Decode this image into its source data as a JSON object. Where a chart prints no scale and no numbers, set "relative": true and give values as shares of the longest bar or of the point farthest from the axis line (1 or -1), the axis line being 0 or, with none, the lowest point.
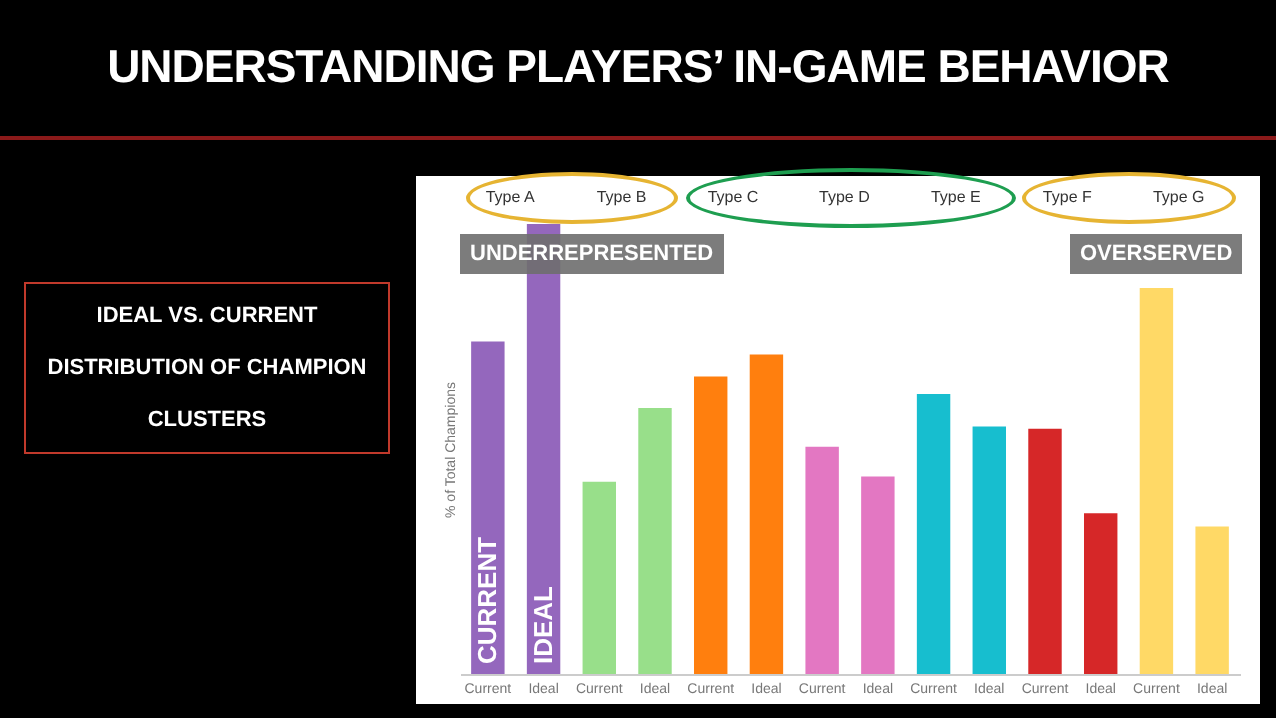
{
  "chart_data": {
    "type": "bar",
    "title": "UNDERSTANDING PLAYERS’ IN-GAME BEHAVIOR",
    "ylabel": "% of Total Champions",
    "relative": true,
    "categories": [
      "Current",
      "Ideal",
      "Current",
      "Ideal",
      "Current",
      "Ideal",
      "Current",
      "Ideal",
      "Current",
      "Ideal",
      "Current",
      "Ideal",
      "Current",
      "Ideal"
    ],
    "values": [
      0.739,
      1,
      0.427,
      0.591,
      0.661,
      0.71,
      0.505,
      0.439,
      0.622,
      0.55,
      0.545,
      0.357,
      0.858,
      0.328
    ],
    "colors": [
      "#9467bd",
      "#9467bd",
      "#98df8a",
      "#98df8a",
      "#ff7f0e",
      "#ff7f0e",
      "#e377c2",
      "#e377c2",
      "#17becf",
      "#17becf",
      "#d62728",
      "#d62728",
      "#ffd966",
      "#ffd966"
    ],
    "annotations": [
      "IDEAL VS. CURRENT DISTRIBUTION OF CHAMPION CLUSTERS",
      "Type A",
      "Type B",
      "Type C",
      "Type D",
      "Type E",
      "Type F",
      "Type G",
      "UNDERREPRESENTED",
      "OVERSERVED",
      "CURRENT",
      "IDEAL"
    ]
  }
}
